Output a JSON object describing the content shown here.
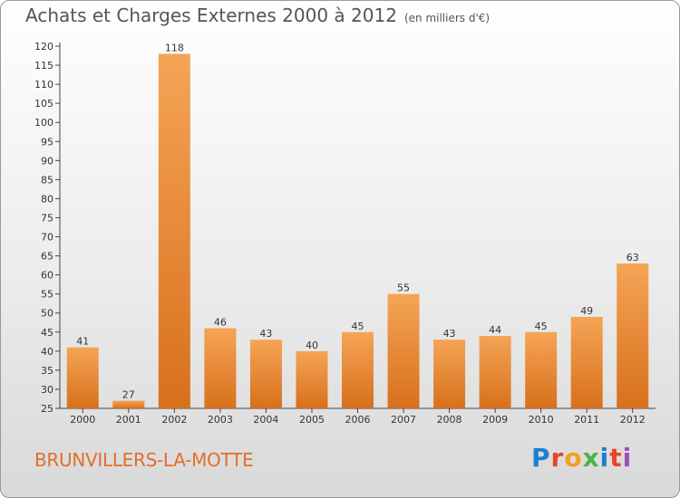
{
  "header": {
    "title": "Achats et Charges Externes 2000 à 2012",
    "unit": "(en milliers d'€)"
  },
  "footer": {
    "commune": "BRUNVILLERS-LA-MOTTE",
    "logo_text": "Proxiti",
    "logo_colors": [
      "#1e7fd0",
      "#e8442b",
      "#f2a11f",
      "#4bb34b",
      "#1e7fd0",
      "#e8442b",
      "#9c4fb8"
    ]
  },
  "chart_data": {
    "type": "bar",
    "title": "Achats et Charges Externes 2000 à 2012",
    "subtitle": "(en milliers d'€)",
    "xlabel": "",
    "ylabel": "",
    "categories": [
      "2000",
      "2001",
      "2002",
      "2003",
      "2004",
      "2005",
      "2006",
      "2007",
      "2008",
      "2009",
      "2010",
      "2011",
      "2012"
    ],
    "values": [
      41,
      27,
      118,
      46,
      43,
      40,
      45,
      55,
      43,
      44,
      45,
      49,
      63
    ],
    "ylim": [
      25,
      120
    ],
    "yticks": [
      25,
      30,
      35,
      40,
      45,
      50,
      55,
      60,
      65,
      70,
      75,
      80,
      85,
      90,
      95,
      100,
      105,
      110,
      115,
      120
    ],
    "grid": false,
    "bar_color_top": "#f5a456",
    "bar_color_bottom": "#d8701c"
  }
}
